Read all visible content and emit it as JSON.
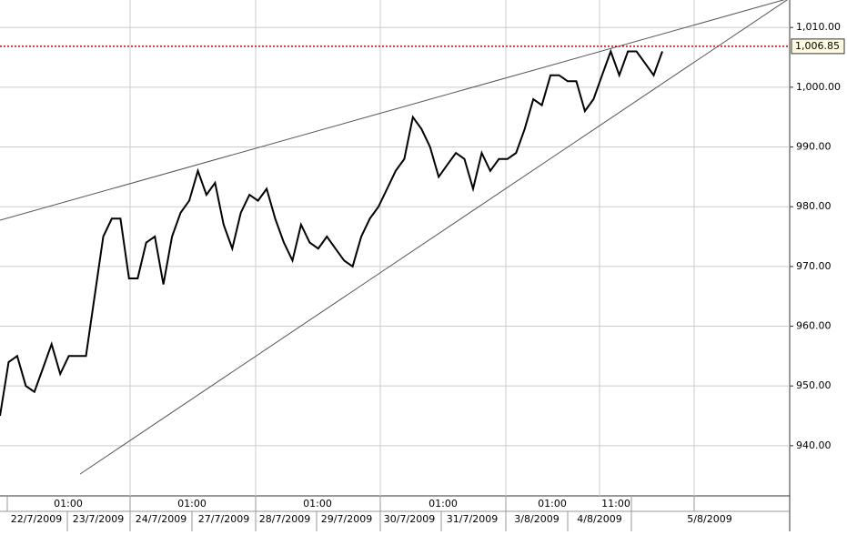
{
  "chart_data": {
    "type": "line",
    "values": [
      945,
      954,
      955,
      950,
      949,
      953,
      957,
      952,
      955,
      955,
      955,
      965,
      975,
      978,
      978,
      968,
      968,
      974,
      975,
      967,
      975,
      979,
      981,
      986,
      982,
      984,
      977,
      973,
      979,
      982,
      981,
      983,
      978,
      974,
      971,
      977,
      974,
      973,
      975,
      973,
      971,
      970,
      975,
      978,
      980,
      983,
      986,
      988,
      995,
      993,
      990,
      985,
      987,
      989,
      988,
      983,
      989,
      986,
      988,
      988,
      989,
      993,
      998,
      997,
      1002,
      1002,
      1001,
      1001,
      996,
      998,
      1002,
      1006,
      1002,
      1006,
      1006,
      1004,
      1002,
      1006
    ],
    "color": "#000000",
    "ylim": [
      931.6,
      1014.6
    ],
    "yticks": [
      {
        "value": 940,
        "label": "940.00"
      },
      {
        "value": 950,
        "label": "950.00"
      },
      {
        "value": 960,
        "label": "960.00"
      },
      {
        "value": 970,
        "label": "970.00"
      },
      {
        "value": 980,
        "label": "980.00"
      },
      {
        "value": 990,
        "label": "990.00"
      },
      {
        "value": 1000,
        "label": "1,000.00"
      },
      {
        "value": 1010,
        "label": "1,010.00"
      }
    ],
    "grid": true,
    "last_price": {
      "value": 1006.85,
      "label": "1,006.85"
    },
    "time_labels": [
      "01:00",
      "01:00",
      "01:00",
      "01:00",
      "01:00",
      "11:00"
    ],
    "date_labels": [
      "22/7/2009",
      "23/7/2009",
      "24/7/2009",
      "27/7/2009",
      "28/7/2009",
      "29/7/2009",
      "30/7/2009",
      "31/7/2009",
      "3/8/2009",
      "4/8/2009",
      "5/8/2009"
    ]
  }
}
